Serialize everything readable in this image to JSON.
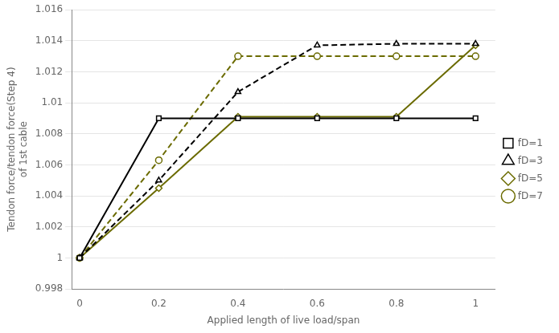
{
  "chart_data": {
    "type": "line",
    "x_label": "Applied length of live load/span",
    "y_label": "Tendon force/tendon force(Step 4)\nof 1st cable",
    "x": [
      0,
      0.2,
      0.4,
      0.6,
      0.8,
      1.0
    ],
    "series": [
      {
        "name": "fD=1",
        "color": "#000000",
        "line_style": "solid",
        "marker": "square",
        "values": [
          1.0,
          1.009,
          1.009,
          1.009,
          1.009,
          1.009
        ]
      },
      {
        "name": "fD=3",
        "color": "#000000",
        "line_style": "dashed",
        "marker": "triangle",
        "values": [
          1.0,
          1.005,
          1.0107,
          1.0137,
          1.0138,
          1.0138
        ]
      },
      {
        "name": "fD=5",
        "color": "#6b6b00",
        "line_style": "solid",
        "marker": "diamond",
        "values": [
          1.0,
          1.0045,
          1.0091,
          1.0091,
          1.0091,
          1.0137
        ]
      },
      {
        "name": "fD=7",
        "color": "#6b6b00",
        "line_style": "dashed",
        "marker": "circle",
        "values": [
          1.0,
          1.0063,
          1.013,
          1.013,
          1.013,
          1.013
        ]
      }
    ],
    "xlim": [
      -0.02,
      1.05
    ],
    "ylim": [
      0.998,
      1.016
    ],
    "xticks": [
      0,
      0.2,
      0.4,
      0.6,
      0.8,
      1.0
    ],
    "yticks": [
      0.998,
      1.0,
      1.002,
      1.004,
      1.006,
      1.008,
      1.01,
      1.012,
      1.014,
      1.016
    ],
    "grid": "y",
    "legend": "right"
  }
}
